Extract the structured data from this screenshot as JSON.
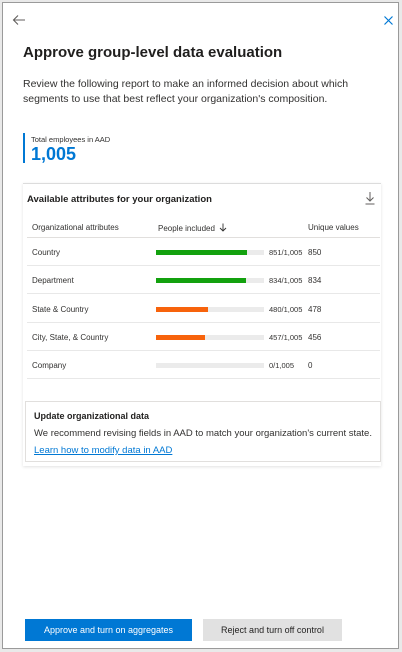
{
  "header": {
    "title": "Approve group-level data evaluation",
    "description": "Review the following report to make an informed decision about which segments to use that best reflect your organization's composition.",
    "back_icon": "arrow-left-icon",
    "close_icon": "close-icon"
  },
  "metric": {
    "label": "Total employees in AAD",
    "value": "1,005"
  },
  "attributes": {
    "heading": "Available attributes for your organization",
    "download_icon": "download-icon",
    "columns": {
      "attribute": "Organizational attributes",
      "people": "People included",
      "unique": "Unique values"
    },
    "sort_icon": "arrow-down-icon",
    "rows": [
      {
        "name": "Country",
        "count": "851/1,005",
        "fraction": 0.847,
        "unique": "850",
        "color": "#13a10e"
      },
      {
        "name": "Department",
        "count": "834/1,005",
        "fraction": 0.83,
        "unique": "834",
        "color": "#13a10e"
      },
      {
        "name": "State & Country",
        "count": "480/1,005",
        "fraction": 0.478,
        "unique": "478",
        "color": "#f7630c"
      },
      {
        "name": "City, State, & Country",
        "count": "457/1,005",
        "fraction": 0.455,
        "unique": "456",
        "color": "#f7630c"
      },
      {
        "name": "Company",
        "count": "0/1,005",
        "fraction": 0,
        "unique": "0",
        "color": "#13a10e"
      }
    ]
  },
  "notice": {
    "title": "Update organizational data",
    "body": "We recommend revising fields in AAD to match your organization's current state.",
    "link": "Learn how to modify data in AAD"
  },
  "actions": {
    "approve": "Approve and turn on aggregates",
    "reject": "Reject and turn off control"
  }
}
